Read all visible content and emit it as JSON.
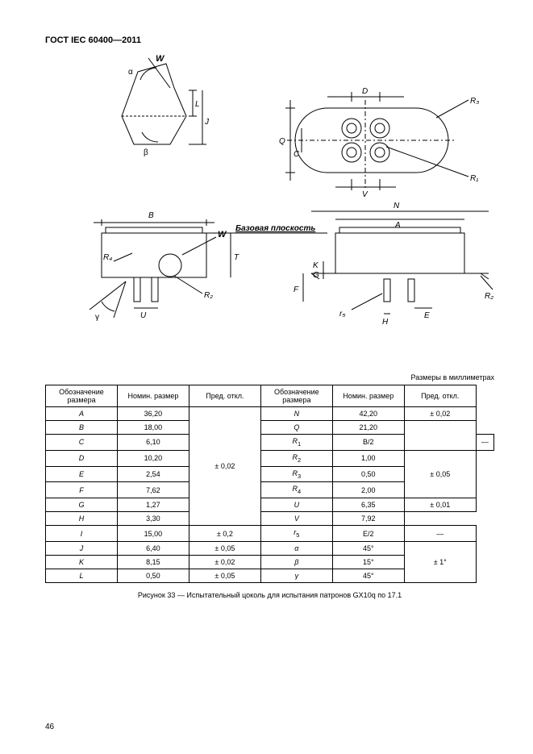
{
  "header": "ГОСТ IEC 60400—2011",
  "units_caption": "Размеры в миллиметрах",
  "figure_caption": "Рисунок 33 — Испытательный цоколь для испытания патронов GX10q по 17.1",
  "page_number": "46",
  "diagram": {
    "base_plane_label": "Базовая плоскость",
    "labels": [
      "W",
      "α",
      "L",
      "J",
      "β",
      "B",
      "W",
      "R4",
      "U",
      "R2",
      "γ",
      "T",
      "D",
      "V",
      "C",
      "Q",
      "R3",
      "R1",
      "N",
      "A",
      "K",
      "G",
      "F",
      "r5",
      "H",
      "E",
      "R2"
    ]
  },
  "table": {
    "columns": [
      "Обозначение размера",
      "Номин. размер",
      "Пред. откл.",
      "Обозначение размера",
      "Номин. размер",
      "Пред. откл."
    ],
    "rows": [
      {
        "l": "A",
        "ln": "36,20",
        "lt_group": 0,
        "r": "N",
        "rn": "42,20",
        "rt": "± 0,02",
        "rt_rowspan": 1
      },
      {
        "l": "B",
        "ln": "18,00",
        "lt_group": 0,
        "r": "Q",
        "rn": "21,20",
        "rt_group": 1
      },
      {
        "l": "C",
        "ln": "6,10",
        "lt_group": 0,
        "r": "R1",
        "r_sub": true,
        "rn": "B/2",
        "rt": "—",
        "rt_rowspan": 1
      },
      {
        "l": "D",
        "ln": "10,20",
        "lt_group": 0,
        "r": "R2",
        "r_sub": true,
        "rn": "1,00",
        "rt_group": 2
      },
      {
        "l": "E",
        "ln": "2,54",
        "lt_group": 0,
        "r": "R3",
        "r_sub": true,
        "rn": "0,50",
        "rt_group": 2
      },
      {
        "l": "F",
        "ln": "7,62",
        "lt_group": 0,
        "r": "R4",
        "r_sub": true,
        "rn": "2,00",
        "rt_group": 2
      },
      {
        "l": "G",
        "ln": "1,27",
        "lt_group": 0,
        "r": "U",
        "rn": "6,35",
        "rt": "± 0,01",
        "rt_rowspan": 1
      },
      {
        "l": "H",
        "ln": "3,30",
        "lt_group": 0,
        "r": "V",
        "rn": "7,92",
        "rt_group": 1
      },
      {
        "l": "I",
        "ln": "15,00",
        "lt": "± 0,2",
        "r": "r5",
        "r_sub": true,
        "rn": "E/2",
        "rt": "—",
        "rt_rowspan": 1
      },
      {
        "l": "J",
        "ln": "6,40",
        "lt": "± 0,05",
        "r": "α",
        "rn": "45°",
        "rt_group": 3
      },
      {
        "l": "K",
        "ln": "8,15",
        "lt": "± 0,02",
        "r": "β",
        "rn": "15°",
        "rt_group": 3
      },
      {
        "l": "L",
        "ln": "0,50",
        "lt": "± 0,05",
        "r": "γ",
        "rn": "45°",
        "rt_group": 3
      }
    ],
    "lt_group_0": "± 0,02",
    "rt_group_1": "",
    "rt_group_2": "± 0,05",
    "rt_group_3": "± 1°"
  }
}
